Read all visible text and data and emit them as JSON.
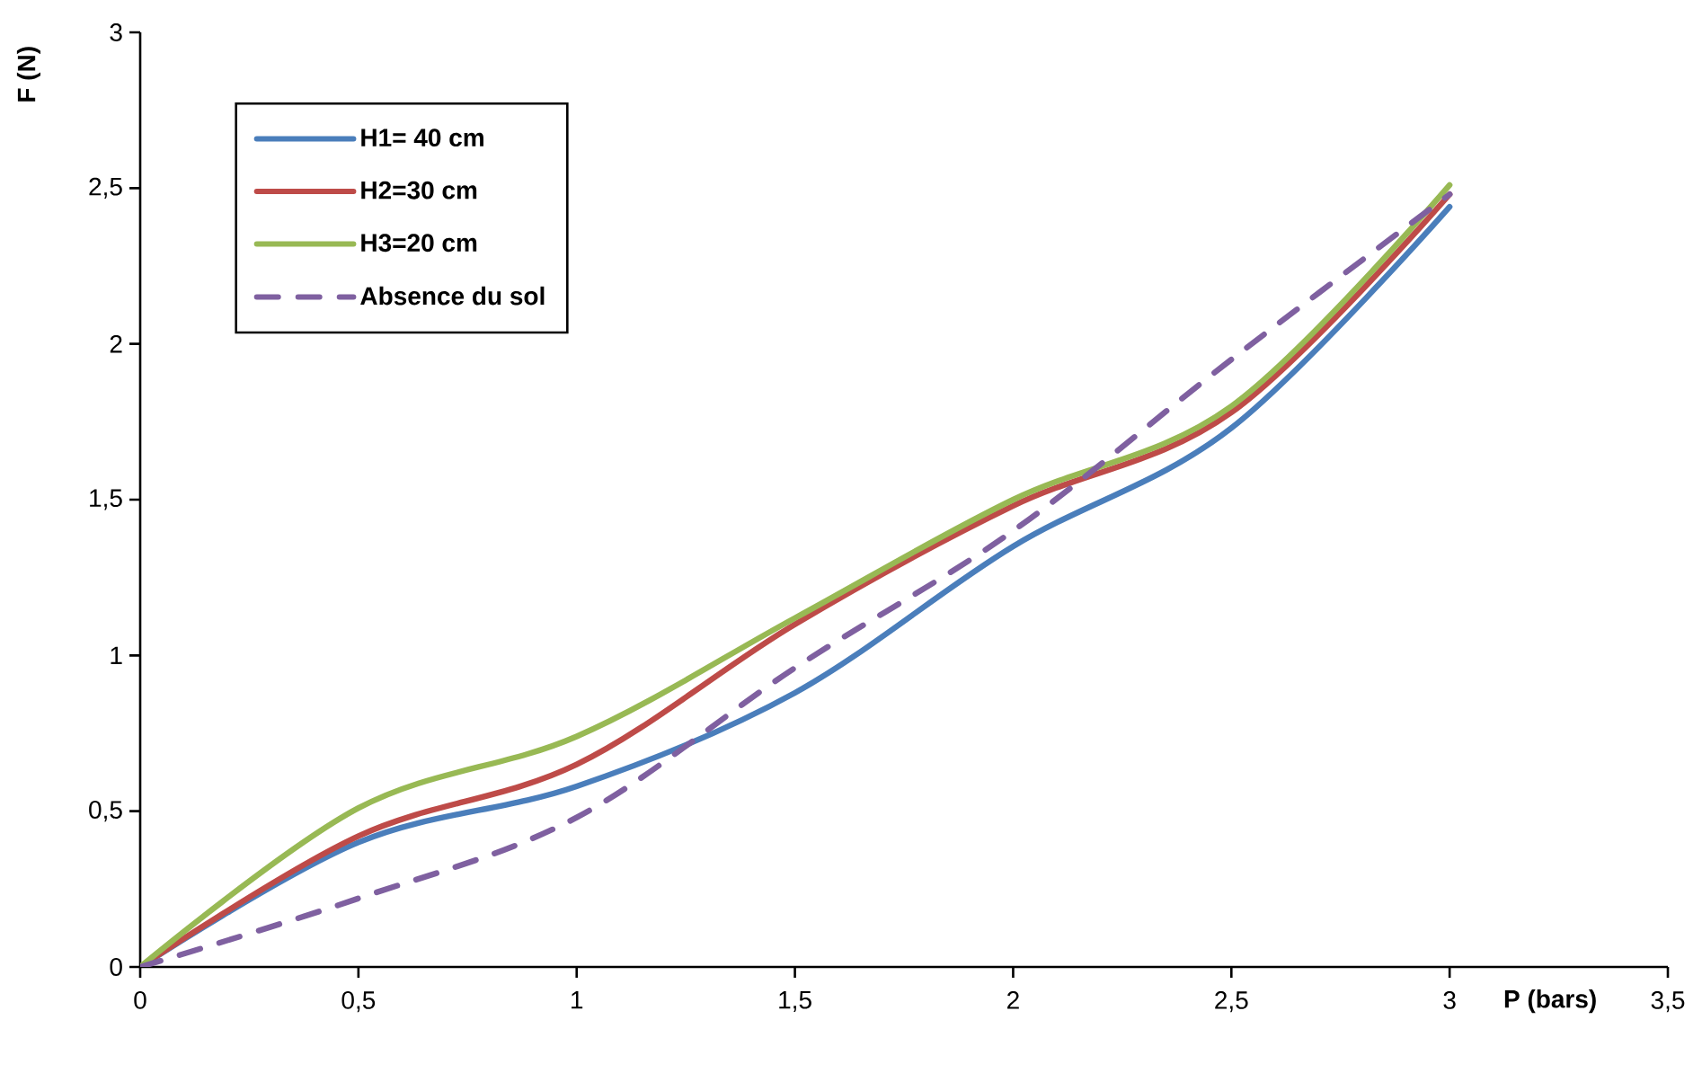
{
  "chart_data": {
    "type": "line",
    "xlabel": "P (bars)",
    "ylabel": "F (N)",
    "x": [
      0,
      0.5,
      1,
      1.5,
      2,
      2.5,
      3
    ],
    "xlim": [
      0,
      3.5
    ],
    "ylim": [
      0,
      3
    ],
    "xticks": [
      0,
      {
        "value": 0.5,
        "label": "0,5"
      },
      1,
      {
        "value": 1.5,
        "label": "1,5"
      },
      2,
      {
        "value": 2.5,
        "label": "2,5"
      },
      3,
      {
        "value": 3.5,
        "label": "3,5"
      }
    ],
    "yticks": [
      0,
      {
        "value": 0.5,
        "label": "0,5"
      },
      1,
      {
        "value": 1.5,
        "label": "1,5"
      },
      2,
      {
        "value": 2.5,
        "label": "2,5"
      },
      3
    ],
    "legend": "top left",
    "marker": "none",
    "series": [
      {
        "name": "H1= 40 cm",
        "color": "#4a7ebb",
        "line_style": "solid",
        "values": [
          0,
          0.4,
          0.58,
          0.88,
          1.35,
          1.73,
          2.44
        ]
      },
      {
        "name": "H2=30 cm",
        "color": "#be4b48",
        "line_style": "solid",
        "values": [
          0,
          0.42,
          0.65,
          1.1,
          1.48,
          1.78,
          2.48
        ]
      },
      {
        "name": "H3=20 cm",
        "color": "#98b954",
        "line_style": "solid",
        "values": [
          0,
          0.51,
          0.74,
          1.12,
          1.5,
          1.8,
          2.51
        ]
      },
      {
        "name": "Absence du sol",
        "color": "#7f60a0",
        "line_style": "dashed",
        "values": [
          0,
          0.22,
          0.48,
          0.96,
          1.4,
          1.95,
          2.48
        ]
      }
    ]
  }
}
